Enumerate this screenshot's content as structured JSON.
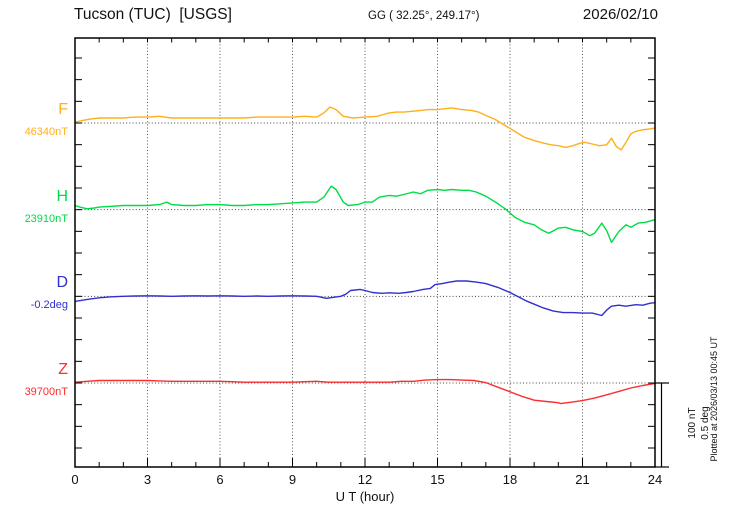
{
  "header": {
    "station": "Tucson (TUC)  [USGS]",
    "coords": "GG ( 32.25°, 249.17°)",
    "date": "2026/02/10"
  },
  "axis": {
    "x_ticks": [
      "0",
      "3",
      "6",
      "9",
      "12",
      "15",
      "18",
      "21",
      "24"
    ],
    "x_label": "U T (hour)"
  },
  "channels": [
    {
      "letter": "F",
      "value_label": "46340nT",
      "color": "#FFAF1E"
    },
    {
      "letter": "H",
      "value_label": "23910nT",
      "color": "#00DC46"
    },
    {
      "letter": "D",
      "value_label": "-0.2deg",
      "color": "#3030CF"
    },
    {
      "letter": "Z",
      "value_label": "39700nT",
      "color": "#FB2E2E"
    }
  ],
  "scale_bar": {
    "line1": "100 nT",
    "line2": "0.5 deg"
  },
  "footer_note": "Plotted at 2026/03/13 00:45 UT",
  "chart_data": {
    "type": "line",
    "title": "Tucson (TUC) [USGS] magnetogram, 2026/02/10",
    "xlabel": "U T (hour)",
    "x_range": [
      0,
      24
    ],
    "x_major_tick_hours": 3,
    "x_minor_tick_hours": 1,
    "grid": "dotted vertical every 3 h, dotted horizontal at each channel baseline",
    "scale_bar": {
      "nT_per_division": 100,
      "deg_per_division": 0.5
    },
    "series": [
      {
        "name": "F",
        "unit": "nT",
        "reference": 46340,
        "color": "#FFAF1E",
        "points": [
          [
            0,
            1
          ],
          [
            0.3,
            3
          ],
          [
            0.7,
            5
          ],
          [
            1,
            6
          ],
          [
            1.5,
            6
          ],
          [
            2,
            6
          ],
          [
            2.5,
            7
          ],
          [
            3,
            7
          ],
          [
            3.5,
            8
          ],
          [
            4,
            6
          ],
          [
            4.5,
            6
          ],
          [
            5,
            6
          ],
          [
            5.5,
            6
          ],
          [
            6,
            6
          ],
          [
            6.5,
            6
          ],
          [
            7,
            6
          ],
          [
            7.5,
            7
          ],
          [
            8,
            7
          ],
          [
            8.5,
            7
          ],
          [
            9,
            7
          ],
          [
            9.5,
            8
          ],
          [
            10,
            7
          ],
          [
            10.3,
            12
          ],
          [
            10.55,
            19
          ],
          [
            10.8,
            16
          ],
          [
            11.1,
            8
          ],
          [
            11.5,
            6
          ],
          [
            12,
            7
          ],
          [
            12.5,
            8
          ],
          [
            13,
            12
          ],
          [
            13.3,
            13
          ],
          [
            13.6,
            13
          ],
          [
            14,
            14
          ],
          [
            14.3,
            15
          ],
          [
            14.6,
            16
          ],
          [
            15,
            16
          ],
          [
            15.3,
            17
          ],
          [
            15.6,
            18
          ],
          [
            16,
            16
          ],
          [
            16.4,
            15
          ],
          [
            16.7,
            13
          ],
          [
            17,
            9
          ],
          [
            17.4,
            4
          ],
          [
            17.8,
            -3
          ],
          [
            18.2,
            -10
          ],
          [
            18.6,
            -17
          ],
          [
            19,
            -21
          ],
          [
            19.4,
            -24
          ],
          [
            19.7,
            -26
          ],
          [
            20,
            -27
          ],
          [
            20.3,
            -29
          ],
          [
            20.6,
            -27
          ],
          [
            20.9,
            -24
          ],
          [
            21.1,
            -23
          ],
          [
            21.4,
            -25
          ],
          [
            21.7,
            -27
          ],
          [
            22,
            -26
          ],
          [
            22.2,
            -18
          ],
          [
            22.4,
            -28
          ],
          [
            22.6,
            -32
          ],
          [
            22.8,
            -23
          ],
          [
            23,
            -13
          ],
          [
            23.2,
            -10
          ],
          [
            23.5,
            -8
          ],
          [
            23.8,
            -7
          ],
          [
            24,
            -6
          ]
        ]
      },
      {
        "name": "H",
        "unit": "nT",
        "reference": 23910,
        "color": "#00DC46",
        "points": [
          [
            0,
            5
          ],
          [
            0.2,
            3
          ],
          [
            0.5,
            1
          ],
          [
            0.8,
            2
          ],
          [
            1,
            3
          ],
          [
            1.5,
            4
          ],
          [
            2,
            5
          ],
          [
            2.5,
            5
          ],
          [
            3,
            5
          ],
          [
            3.5,
            6
          ],
          [
            3.8,
            9
          ],
          [
            4,
            6
          ],
          [
            4.5,
            5
          ],
          [
            5,
            5
          ],
          [
            5.5,
            6
          ],
          [
            6,
            6
          ],
          [
            6.5,
            5
          ],
          [
            7,
            5
          ],
          [
            7.5,
            6
          ],
          [
            8,
            6
          ],
          [
            8.5,
            7
          ],
          [
            9,
            8
          ],
          [
            9.5,
            9
          ],
          [
            10,
            9
          ],
          [
            10.3,
            15
          ],
          [
            10.6,
            28
          ],
          [
            10.8,
            24
          ],
          [
            11.1,
            9
          ],
          [
            11.3,
            5
          ],
          [
            11.7,
            6
          ],
          [
            12,
            9
          ],
          [
            12.3,
            9
          ],
          [
            12.6,
            15
          ],
          [
            13,
            17
          ],
          [
            13.3,
            16
          ],
          [
            13.6,
            18
          ],
          [
            14,
            21
          ],
          [
            14.3,
            19
          ],
          [
            14.6,
            23
          ],
          [
            15,
            24
          ],
          [
            15.3,
            23
          ],
          [
            15.6,
            24
          ],
          [
            16,
            23
          ],
          [
            16.3,
            23
          ],
          [
            16.6,
            21
          ],
          [
            17,
            16
          ],
          [
            17.4,
            9
          ],
          [
            17.8,
            1
          ],
          [
            18.2,
            -9
          ],
          [
            18.6,
            -15
          ],
          [
            19,
            -18
          ],
          [
            19.3,
            -24
          ],
          [
            19.6,
            -28
          ],
          [
            19.8,
            -25
          ],
          [
            20,
            -22
          ],
          [
            20.3,
            -21
          ],
          [
            20.6,
            -24
          ],
          [
            21,
            -26
          ],
          [
            21.3,
            -31
          ],
          [
            21.5,
            -28
          ],
          [
            21.8,
            -16
          ],
          [
            22,
            -25
          ],
          [
            22.2,
            -39
          ],
          [
            22.5,
            -26
          ],
          [
            22.8,
            -18
          ],
          [
            23,
            -21
          ],
          [
            23.3,
            -16
          ],
          [
            23.6,
            -15
          ],
          [
            24,
            -12
          ]
        ]
      },
      {
        "name": "D",
        "unit": "deg",
        "reference": -0.2,
        "color": "#3030CF",
        "points": [
          [
            0,
            -0.03
          ],
          [
            0.5,
            -0.018
          ],
          [
            1,
            -0.009
          ],
          [
            1.5,
            -0.003
          ],
          [
            2,
            0
          ],
          [
            2.5,
            0.002
          ],
          [
            3,
            0.003
          ],
          [
            3.5,
            0.002
          ],
          [
            4,
            0
          ],
          [
            4.5,
            0.002
          ],
          [
            5,
            0.003
          ],
          [
            5.5,
            0.002
          ],
          [
            6,
            0.003
          ],
          [
            6.5,
            0.002
          ],
          [
            7,
            0
          ],
          [
            7.5,
            0.002
          ],
          [
            8,
            0
          ],
          [
            8.5,
            0.002
          ],
          [
            9,
            0.003
          ],
          [
            9.5,
            0.002
          ],
          [
            10,
            0
          ],
          [
            10.4,
            -0.012
          ],
          [
            10.7,
            -0.006
          ],
          [
            11,
            0
          ],
          [
            11.2,
            0.012
          ],
          [
            11.4,
            0.035
          ],
          [
            11.8,
            0.041
          ],
          [
            12,
            0.035
          ],
          [
            12.3,
            0.023
          ],
          [
            12.7,
            0.018
          ],
          [
            13,
            0.021
          ],
          [
            13.4,
            0.018
          ],
          [
            13.7,
            0.023
          ],
          [
            14,
            0.029
          ],
          [
            14.4,
            0.041
          ],
          [
            14.7,
            0.047
          ],
          [
            14.9,
            0.07
          ],
          [
            15.2,
            0.076
          ],
          [
            15.5,
            0.085
          ],
          [
            15.8,
            0.091
          ],
          [
            16.2,
            0.091
          ],
          [
            16.6,
            0.085
          ],
          [
            17,
            0.076
          ],
          [
            17.5,
            0.053
          ],
          [
            18,
            0.023
          ],
          [
            18.3,
            0
          ],
          [
            18.7,
            -0.029
          ],
          [
            19,
            -0.047
          ],
          [
            19.4,
            -0.07
          ],
          [
            19.8,
            -0.088
          ],
          [
            20.2,
            -0.097
          ],
          [
            20.6,
            -0.097
          ],
          [
            21,
            -0.1
          ],
          [
            21.4,
            -0.1
          ],
          [
            21.8,
            -0.114
          ],
          [
            22,
            -0.082
          ],
          [
            22.2,
            -0.059
          ],
          [
            22.5,
            -0.053
          ],
          [
            22.8,
            -0.059
          ],
          [
            23.2,
            -0.05
          ],
          [
            23.5,
            -0.053
          ],
          [
            23.8,
            -0.041
          ],
          [
            24,
            -0.038
          ]
        ]
      },
      {
        "name": "Z",
        "unit": "nT",
        "reference": 39700,
        "color": "#FB2E2E",
        "points": [
          [
            0,
            1
          ],
          [
            0.5,
            2
          ],
          [
            1,
            3
          ],
          [
            1.5,
            3
          ],
          [
            2,
            3
          ],
          [
            2.5,
            3
          ],
          [
            3,
            3
          ],
          [
            3.5,
            2.5
          ],
          [
            4,
            2
          ],
          [
            4.5,
            2
          ],
          [
            5,
            2
          ],
          [
            5.5,
            2
          ],
          [
            6,
            2
          ],
          [
            6.5,
            1.5
          ],
          [
            7,
            1
          ],
          [
            7.5,
            1
          ],
          [
            8,
            1
          ],
          [
            8.5,
            1
          ],
          [
            9,
            1
          ],
          [
            9.5,
            1.5
          ],
          [
            10,
            2
          ],
          [
            10.5,
            1
          ],
          [
            11,
            1
          ],
          [
            11.5,
            1
          ],
          [
            12,
            1
          ],
          [
            12.5,
            1
          ],
          [
            13,
            1
          ],
          [
            13.5,
            2
          ],
          [
            14,
            2
          ],
          [
            14.5,
            3.5
          ],
          [
            15,
            4
          ],
          [
            15.5,
            4
          ],
          [
            16,
            3.5
          ],
          [
            16.5,
            3
          ],
          [
            17,
            0.5
          ],
          [
            17.5,
            -5
          ],
          [
            18,
            -10.5
          ],
          [
            18.5,
            -16
          ],
          [
            19,
            -20.5
          ],
          [
            19.5,
            -22
          ],
          [
            20,
            -23.5
          ],
          [
            20.1,
            -24.5
          ],
          [
            20.5,
            -23
          ],
          [
            21,
            -21
          ],
          [
            21.5,
            -18
          ],
          [
            22,
            -14
          ],
          [
            22.5,
            -10
          ],
          [
            23,
            -6
          ],
          [
            23.5,
            -3
          ],
          [
            24,
            -0.5
          ]
        ]
      }
    ]
  }
}
